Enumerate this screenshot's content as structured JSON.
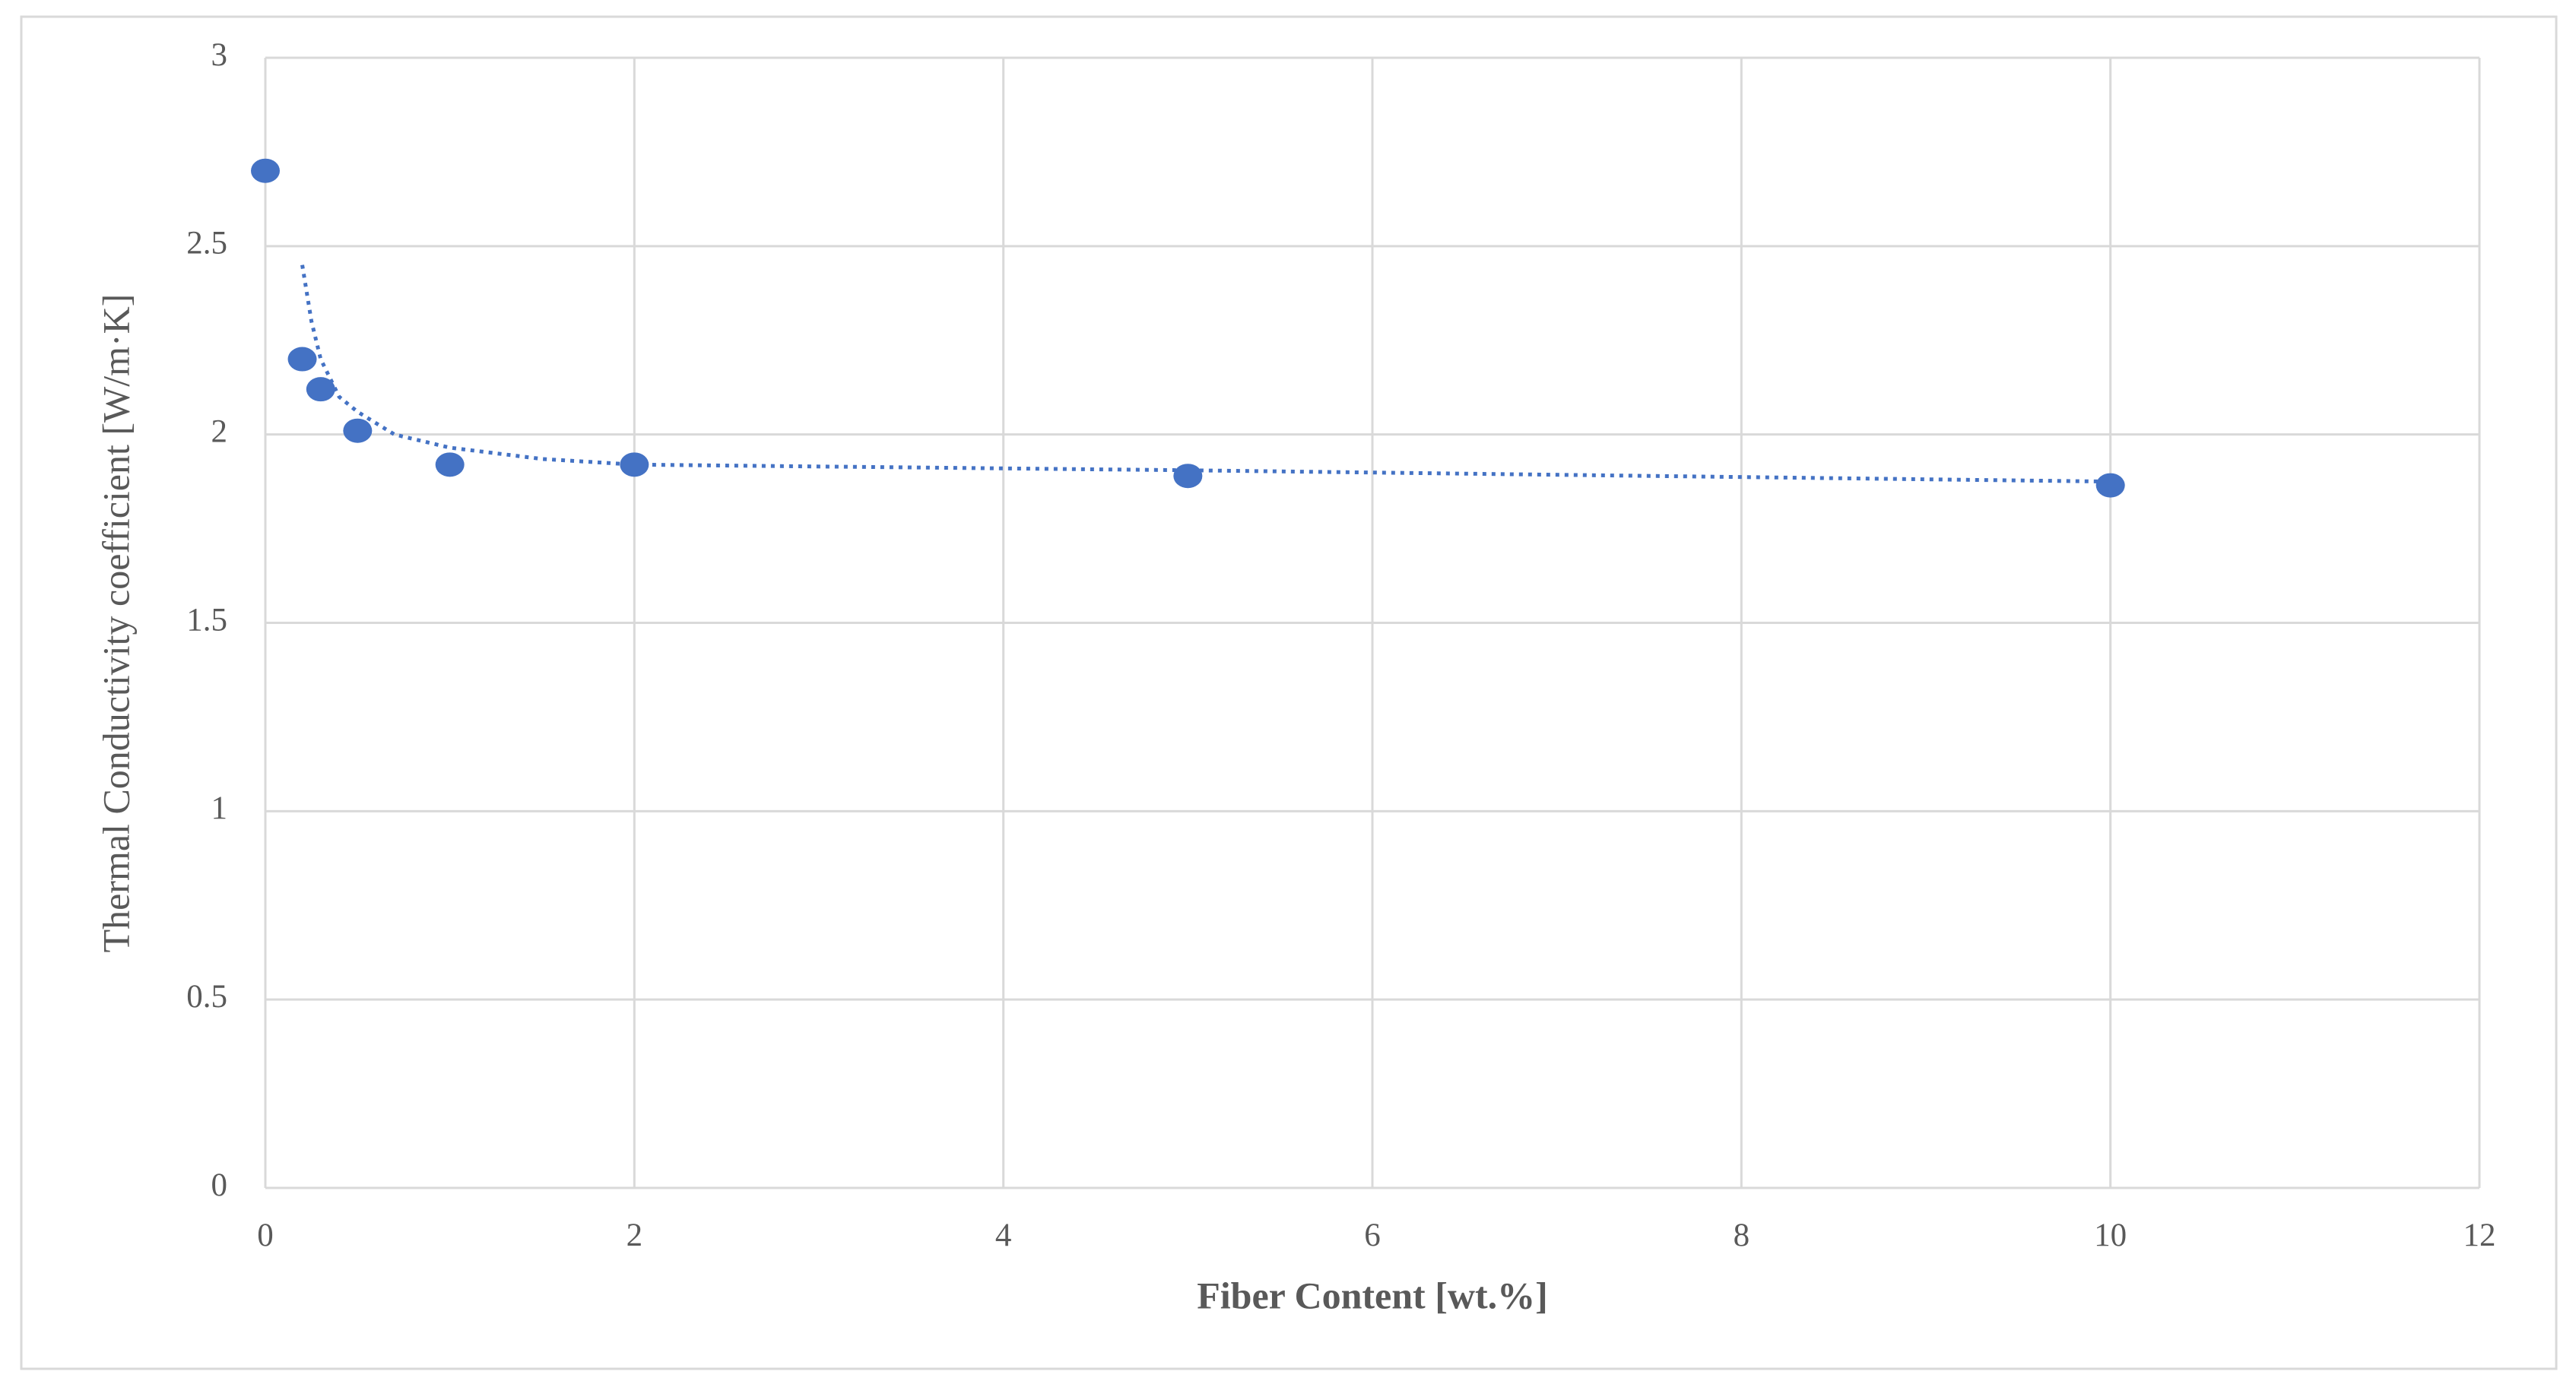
{
  "chart_data": {
    "type": "scatter",
    "x_label": "Fiber Content [wt.%]",
    "y_label": "Thermal Conductivity coefficient [W/m·K]",
    "x": [
      0,
      0.2,
      0.3,
      0.5,
      1,
      2,
      5,
      10
    ],
    "values": [
      2.7,
      2.2,
      2.12,
      2.01,
      1.92,
      1.92,
      1.89,
      1.865
    ],
    "color": "#4472c4",
    "trendline": {
      "x": [
        0.2,
        0.25,
        0.3,
        0.4,
        0.5,
        0.7,
        1,
        1.5,
        2,
        5,
        10
      ],
      "values": [
        2.45,
        2.3,
        2.2,
        2.1,
        2.06,
        2.0,
        1.965,
        1.935,
        1.92,
        1.905,
        1.875
      ],
      "color": "#4472c4",
      "dash": "dotted"
    },
    "xlim": [
      0,
      12
    ],
    "xticks": [
      0,
      2,
      4,
      6,
      8,
      10,
      12
    ],
    "ylim": [
      0,
      3
    ],
    "yticks": [
      0,
      0.5,
      1,
      1.5,
      2,
      2.5,
      3
    ],
    "grid": true
  }
}
